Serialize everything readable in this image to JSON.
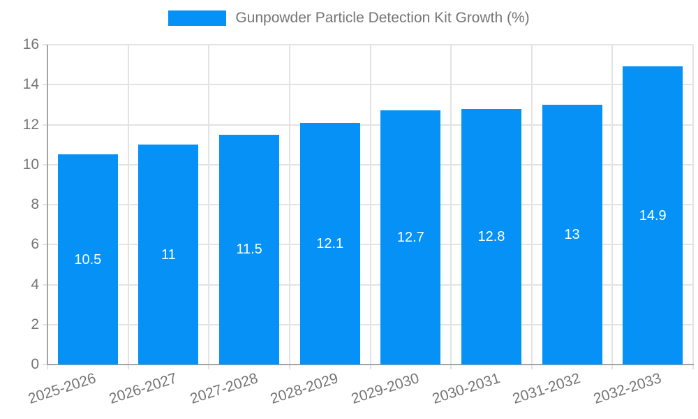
{
  "chart_data": {
    "type": "bar",
    "title": "Gunpowder Particle Detection Kit Growth (%)",
    "categories": [
      "2025-2026",
      "2026-2027",
      "2027-2028",
      "2028-2029",
      "2029-2030",
      "2030-2031",
      "2031-2032",
      "2032-2033"
    ],
    "values": [
      10.5,
      11,
      11.5,
      12.1,
      12.7,
      12.8,
      13,
      14.9
    ],
    "value_labels": [
      "10.5",
      "11",
      "11.5",
      "12.1",
      "12.7",
      "12.8",
      "13",
      "14.9"
    ],
    "xlabel": "",
    "ylabel": "",
    "ylim": [
      0,
      16
    ],
    "ytick_step": 2,
    "ytick_labels": [
      "0",
      "2",
      "4",
      "6",
      "8",
      "10",
      "12",
      "14",
      "16"
    ],
    "grid": true,
    "legend_position": "top-center",
    "colors": {
      "bar": "#0591f5",
      "grid": "#e3e3e3",
      "axis": "#a3a3a3",
      "tick_label": "#757575",
      "legend_text": "#757575",
      "value_label": "#ffffff",
      "background": "#ffffff"
    }
  }
}
